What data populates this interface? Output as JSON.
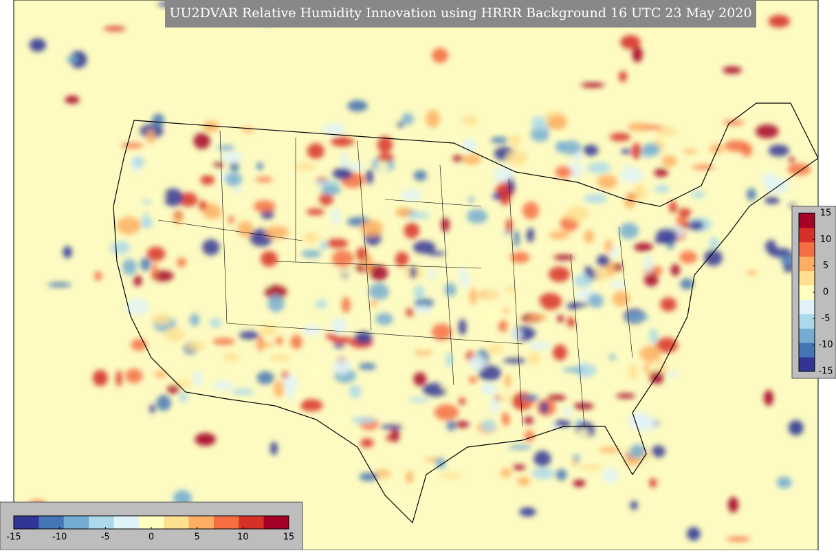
{
  "title": "UU2DVAR Relative Humidity Innovation using HRRR Background 16 UTC 23 May 2020",
  "colorbar": {
    "range": [
      -15,
      15
    ],
    "ticks": [
      -15,
      -10,
      -5,
      0,
      5,
      10,
      15
    ],
    "colors": [
      "#313695",
      "#4575b4",
      "#74add1",
      "#abd9e9",
      "#e0f3f8",
      "#ffffbf",
      "#fee090",
      "#fdae61",
      "#f46d43",
      "#d73027",
      "#a50026"
    ]
  }
}
